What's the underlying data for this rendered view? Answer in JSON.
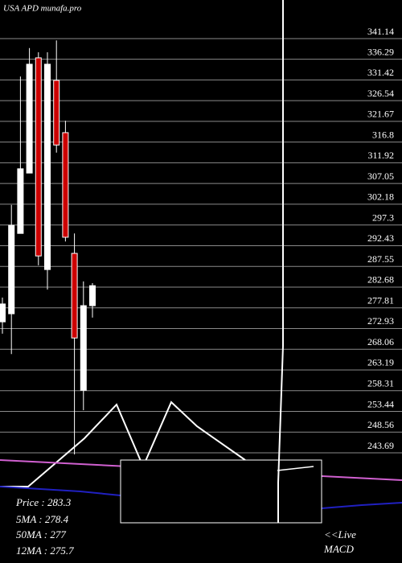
{
  "chart_data": {
    "type": "candlestick",
    "title": "USA APD munafa.pro",
    "open": [
      273.0,
      274.9,
      293.8,
      308.0,
      335.1,
      285.3,
      329.8,
      317.5,
      289.1,
      256.9,
      276.8
    ],
    "high": [
      278.7,
      300.5,
      330.7,
      337.4,
      336.4,
      336.4,
      339.2,
      320.3,
      293.8,
      282.5,
      282.1
    ],
    "low": [
      270.2,
      265.4,
      293.8,
      308.0,
      286.3,
      280.6,
      312.8,
      291.9,
      241.8,
      252.2,
      274.0
    ],
    "close": [
      277.2,
      295.7,
      309.0,
      333.6,
      288.5,
      333.6,
      314.6,
      292.9,
      269.2,
      276.8,
      281.5
    ],
    "up_color": "#ffffff",
    "down_color": "#cc0000",
    "ylim": [
      216.26,
      348.71
    ],
    "yticks": [
      341.14,
      336.29,
      331.42,
      326.54,
      321.67,
      316.8,
      311.92,
      307.05,
      302.18,
      297.3,
      292.43,
      287.55,
      282.68,
      277.81,
      272.93,
      268.06,
      263.19,
      258.31,
      253.44,
      248.56,
      243.69
    ],
    "grid": true,
    "annotations": [
      "Price   : 283.3",
      "5MA : 278.4",
      "50MA : 277",
      "12MA : 275.7"
    ],
    "live_label": [
      "<<Live",
      "MACD"
    ]
  }
}
